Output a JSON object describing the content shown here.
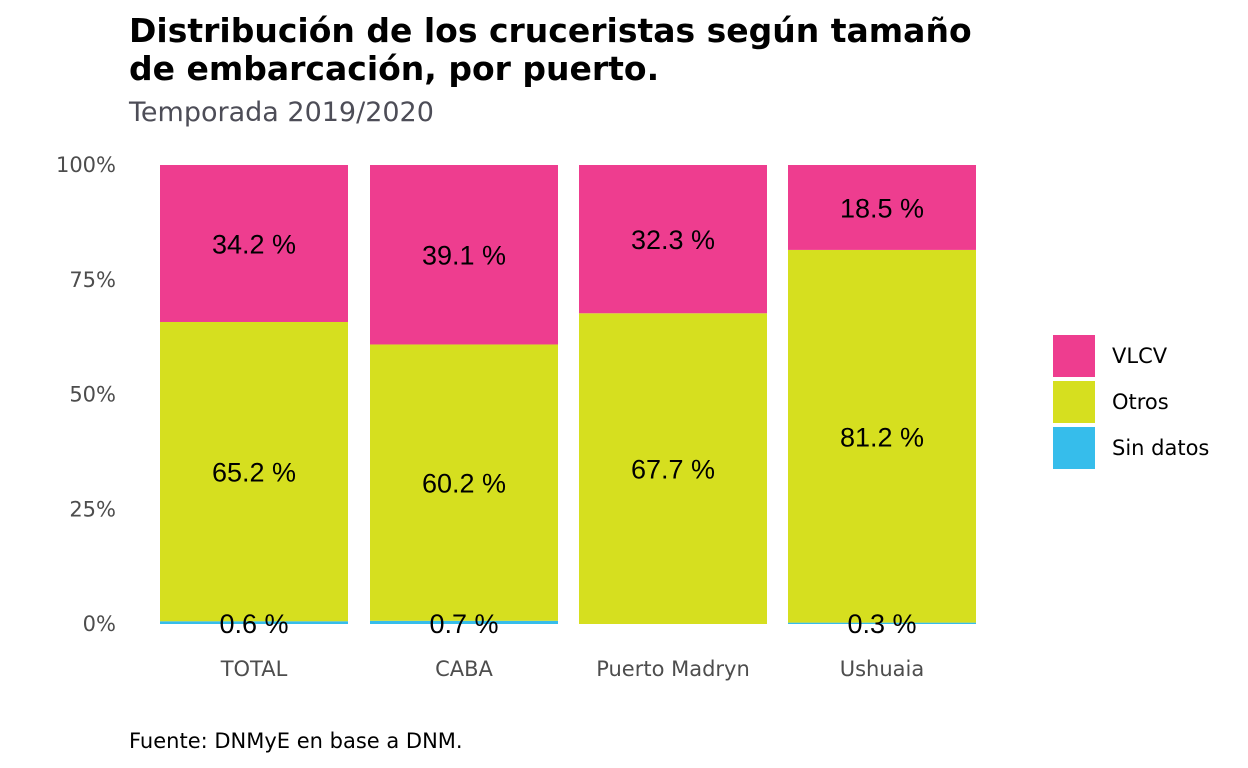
{
  "chart_data": {
    "type": "bar",
    "stacked": true,
    "title_lines": [
      "Distribución de los cruceristas según tamaño",
      "de embarcación, por puerto."
    ],
    "subtitle": "Temporada 2019/2020",
    "caption": "Fuente: DNMyE en base a DNM.",
    "categories": [
      "TOTAL",
      "CABA",
      "Puerto Madryn",
      "Ushuaia"
    ],
    "ylim": [
      0,
      100
    ],
    "yticks": [
      0,
      25,
      50,
      75,
      100
    ],
    "ytick_labels": [
      "0%",
      "25%",
      "50%",
      "75%",
      "100%"
    ],
    "series": [
      {
        "name": "Sin datos",
        "color": "#36bdeb",
        "values": [
          0.6,
          0.7,
          0,
          0.3
        ],
        "labels": [
          "0.6 %",
          "0.7 %",
          "",
          "0.3 %"
        ]
      },
      {
        "name": "Otros",
        "color": "#d6df1f",
        "values": [
          65.2,
          60.2,
          67.7,
          81.2
        ],
        "labels": [
          "65.2 %",
          "60.2 %",
          "67.7 %",
          "81.2 %"
        ]
      },
      {
        "name": "VLCV",
        "color": "#ee3d8f",
        "values": [
          34.2,
          39.1,
          32.3,
          18.5
        ],
        "labels": [
          "34.2 %",
          "39.1 %",
          "32.3 %",
          "18.5 %"
        ]
      }
    ],
    "legend": {
      "position": "right",
      "entries": [
        {
          "name": "VLCV",
          "color": "#ee3d8f"
        },
        {
          "name": "Otros",
          "color": "#d6df1f"
        },
        {
          "name": "Sin datos",
          "color": "#36bdeb"
        }
      ]
    }
  }
}
